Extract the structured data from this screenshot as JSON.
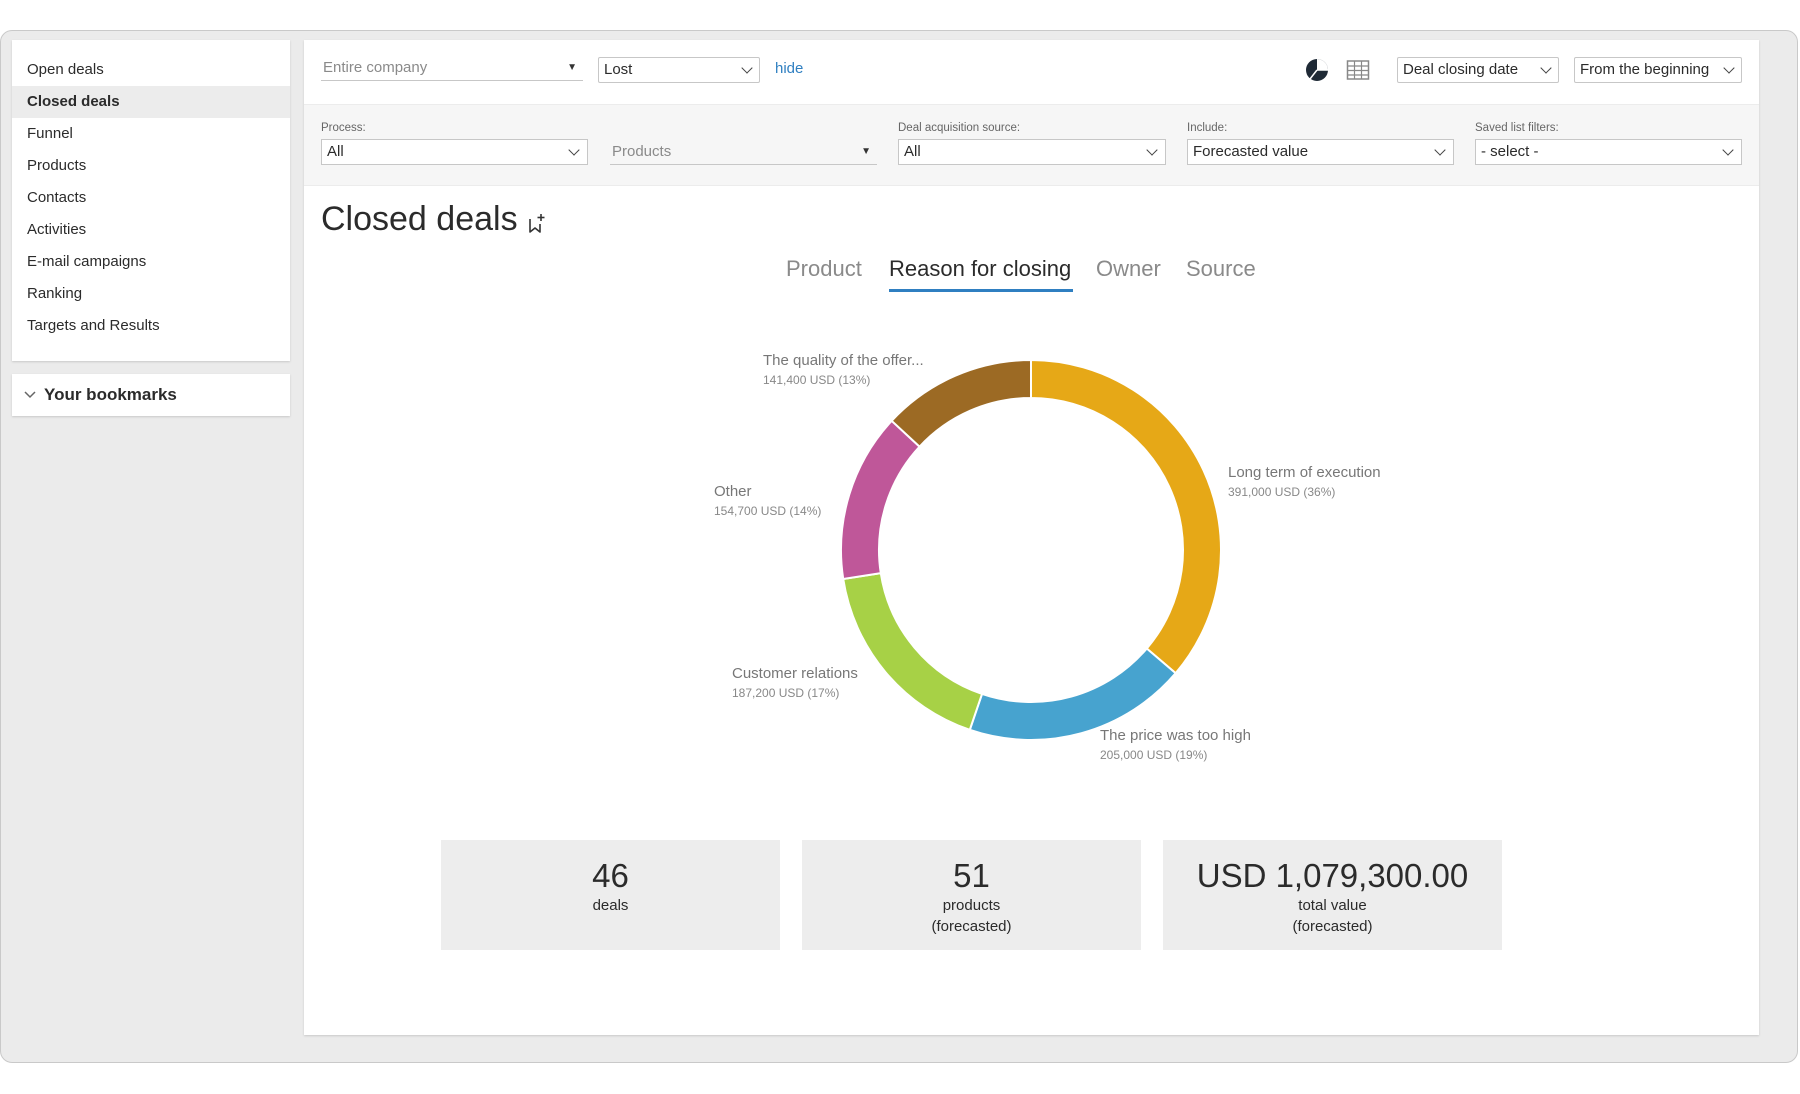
{
  "sidebar": {
    "items": [
      {
        "label": "Open deals",
        "active": false
      },
      {
        "label": "Closed deals",
        "active": true
      },
      {
        "label": "Funnel",
        "active": false
      },
      {
        "label": "Products",
        "active": false
      },
      {
        "label": "Contacts",
        "active": false
      },
      {
        "label": "Activities",
        "active": false
      },
      {
        "label": "E-mail campaigns",
        "active": false
      },
      {
        "label": "Ranking",
        "active": false
      },
      {
        "label": "Targets and Results",
        "active": false
      }
    ],
    "bookmarks_label": "Your bookmarks"
  },
  "topbar": {
    "company_placeholder": "Entire company",
    "status_value": "Lost",
    "hide_link": "hide",
    "date_field": "Deal closing date",
    "period": "From the beginning"
  },
  "filters": {
    "process_label": "Process:",
    "process_value": "All",
    "products_placeholder": "Products",
    "source_label": "Deal acquisition source:",
    "source_value": "All",
    "include_label": "Include:",
    "include_value": "Forecasted value",
    "saved_label": "Saved list filters:",
    "saved_value": "- select -"
  },
  "page": {
    "title": "Closed deals"
  },
  "tabs": [
    {
      "label": "Product",
      "active": false
    },
    {
      "label": "Reason for closing",
      "active": true
    },
    {
      "label": "Owner",
      "active": false
    },
    {
      "label": "Source",
      "active": false
    }
  ],
  "chart_data": {
    "type": "pie",
    "variant": "donut",
    "currency": "USD",
    "slices": [
      {
        "name": "Long term of execution",
        "value": 391000,
        "display": "391,000 USD (36%)",
        "percent": 36,
        "color": "#e6a817"
      },
      {
        "name": "The price was too high",
        "value": 205000,
        "display": "205,000 USD (19%)",
        "percent": 19,
        "color": "#47a3cf"
      },
      {
        "name": "Customer relations",
        "value": 187200,
        "display": "187,200 USD (17%)",
        "percent": 17,
        "color": "#a7d146"
      },
      {
        "name": "Other",
        "value": 154700,
        "display": "154,700 USD (14%)",
        "percent": 14,
        "color": "#bf5799"
      },
      {
        "name": "The quality of the offer...",
        "value": 141400,
        "display": "141,400 USD (13%)",
        "percent": 13,
        "color": "#9c6a24"
      }
    ]
  },
  "stats": [
    {
      "value": "46",
      "label": "deals",
      "sublabel": ""
    },
    {
      "value": "51",
      "label": "products",
      "sublabel": "(forecasted)"
    },
    {
      "value": "USD 1,079,300.00",
      "label": "total value",
      "sublabel": "(forecasted)"
    }
  ]
}
